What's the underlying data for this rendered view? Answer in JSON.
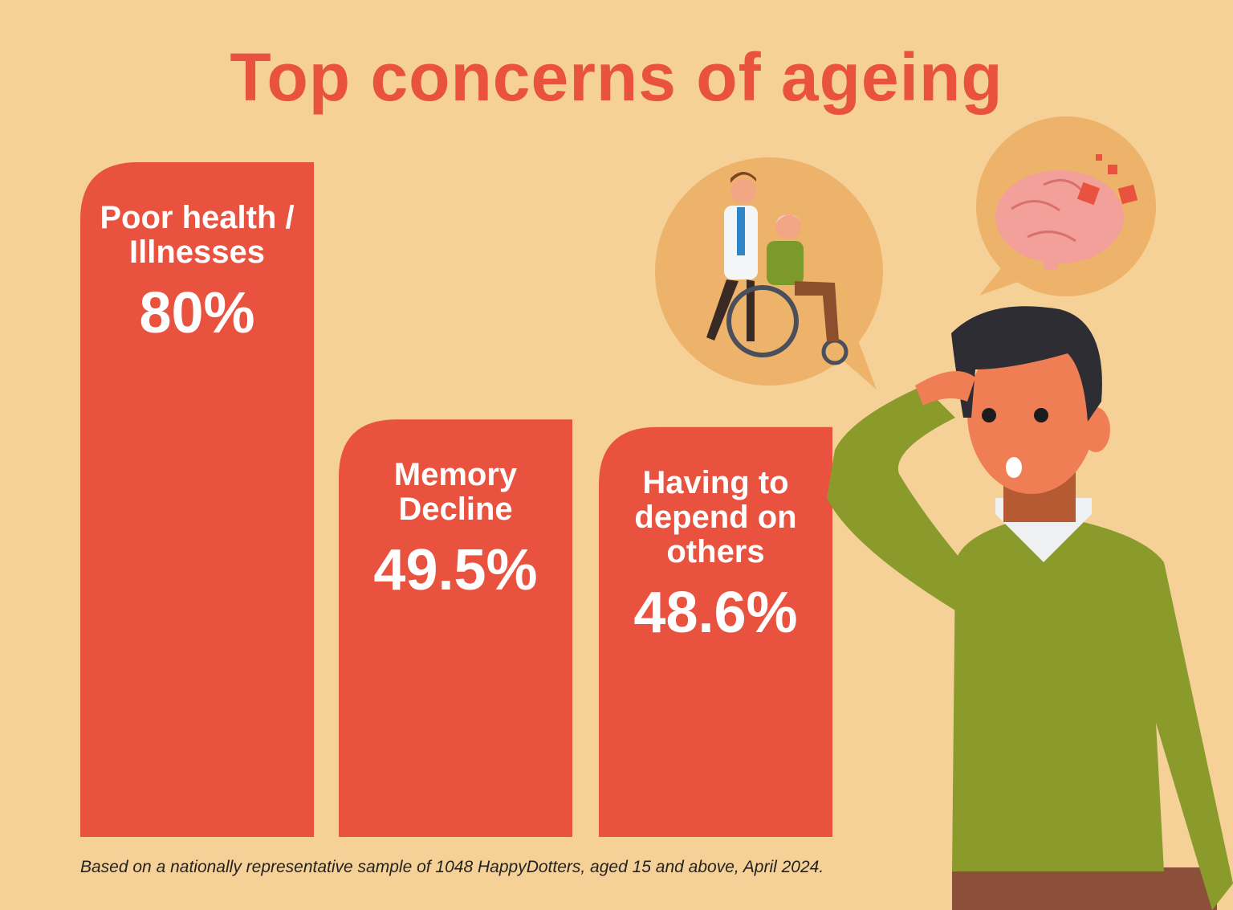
{
  "chart_data": {
    "type": "bar",
    "title": "Top concerns of ageing",
    "categories": [
      "Poor health / Illnesses",
      "Memory Decline",
      "Having to depend on others"
    ],
    "values": [
      80,
      49.5,
      48.6
    ],
    "value_labels": [
      "80%",
      "49.5%",
      "48.6%"
    ],
    "color": "#e8523f",
    "note": "Based on a nationally representative sample of 1048 HappyDotters, aged 15 and above, April 2024."
  }
}
